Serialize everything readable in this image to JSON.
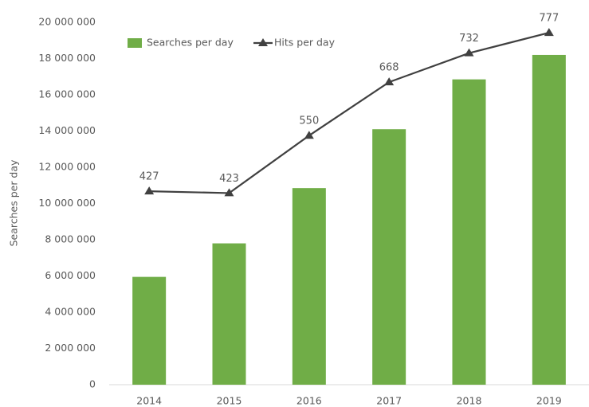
{
  "chart_data": {
    "type": "bar",
    "y_label": "Searches per day",
    "categories": [
      "2014",
      "2015",
      "2016",
      "2017",
      "2018",
      "2019"
    ],
    "series": [
      {
        "name": "Searches per day",
        "type": "bar",
        "color": "#70ad47",
        "values": [
          5950000,
          7800000,
          10850000,
          14100000,
          16850000,
          18200000
        ]
      },
      {
        "name": "Hits per day",
        "type": "line",
        "axis": "y2",
        "color": "#404040",
        "marker": "triangle",
        "values": [
          427,
          423,
          550,
          668,
          732,
          777
        ]
      }
    ],
    "ylim": [
      0,
      20000000
    ],
    "yticks": [
      0,
      {
        "value": 2000000,
        "label": "2 000 000"
      },
      {
        "value": 4000000,
        "label": "4 000 000"
      },
      {
        "value": 6000000,
        "label": "6 000 000"
      },
      {
        "value": 8000000,
        "label": "8 000 000"
      },
      {
        "value": 10000000,
        "label": "10 000 000"
      },
      {
        "value": 12000000,
        "label": "12 000 000"
      },
      {
        "value": 14000000,
        "label": "14 000 000"
      },
      {
        "value": 16000000,
        "label": "16 000 000"
      },
      {
        "value": 18000000,
        "label": "18 000 000"
      },
      {
        "value": 20000000,
        "label": "20 000 000"
      }
    ],
    "y2lim": [
      0,
      800
    ],
    "grid": false,
    "legend": "top"
  }
}
